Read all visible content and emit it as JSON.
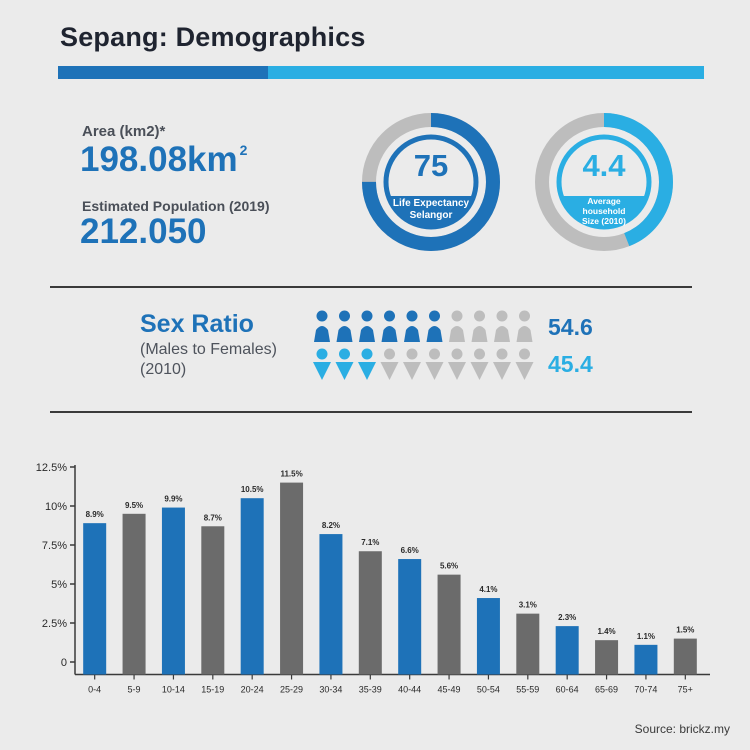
{
  "title": "Sepang: Demographics",
  "colors": {
    "blue": "#1e72b8",
    "light_blue": "#2aaee3",
    "gray_bar": "#6b6b6b",
    "gray_ring": "#bdbdbd",
    "text_dark": "#1f2430"
  },
  "area": {
    "label": "Area (km2)*",
    "value": "198.08km",
    "sup": "2"
  },
  "population": {
    "label": "Estimated Population (2019)",
    "value": "212.050"
  },
  "life_expectancy": {
    "value": "75",
    "caption_line1": "Life Expectancy",
    "caption_line2": "Selangor",
    "fill_fraction": 0.75
  },
  "household": {
    "value": "4.4",
    "caption_line1": "Average",
    "caption_line2": "household",
    "caption_line3": "Size (2010)",
    "fill_fraction": 0.44
  },
  "sex_ratio": {
    "title": "Sex Ratio",
    "subtitle_line1": "(Males to Females)",
    "subtitle_line2": "(2010)",
    "males_value": "54.6",
    "females_value": "45.4",
    "males_highlighted": 6,
    "females_highlighted": 3,
    "icons_per_row": 10
  },
  "chart_data": {
    "type": "bar",
    "categories": [
      "0-4",
      "5-9",
      "10-14",
      "15-19",
      "20-24",
      "25-29",
      "30-34",
      "35-39",
      "40-44",
      "45-49",
      "50-54",
      "55-59",
      "60-64",
      "65-69",
      "70-74",
      "75+"
    ],
    "values": [
      8.9,
      9.5,
      9.9,
      8.7,
      10.5,
      11.5,
      8.2,
      7.1,
      6.6,
      5.6,
      4.1,
      3.1,
      2.3,
      1.4,
      1.1,
      1.5
    ],
    "data_labels": [
      "8.9%",
      "9.5%",
      "9.9%",
      "8.7%",
      "10.5%",
      "11.5%",
      "8.2%",
      "7.1%",
      "6.6%",
      "5.6%",
      "4.1%",
      "3.1%",
      "2.3%",
      "1.4%",
      "1.1%",
      "1.5%"
    ],
    "bar_colors": [
      "#1e72b8",
      "#6b6b6b",
      "#1e72b8",
      "#6b6b6b",
      "#1e72b8",
      "#6b6b6b",
      "#1e72b8",
      "#6b6b6b",
      "#1e72b8",
      "#6b6b6b",
      "#1e72b8",
      "#6b6b6b",
      "#1e72b8",
      "#6b6b6b",
      "#1e72b8",
      "#6b6b6b"
    ],
    "yticks": [
      0,
      2.5,
      5,
      7.5,
      10,
      12.5
    ],
    "ytick_labels": [
      "0",
      "2.5%",
      "5%",
      "7.5%",
      "10%",
      "12.5%"
    ],
    "ylim": [
      -0.8,
      12.5
    ],
    "grid": false
  },
  "source": "Source: brickz.my"
}
